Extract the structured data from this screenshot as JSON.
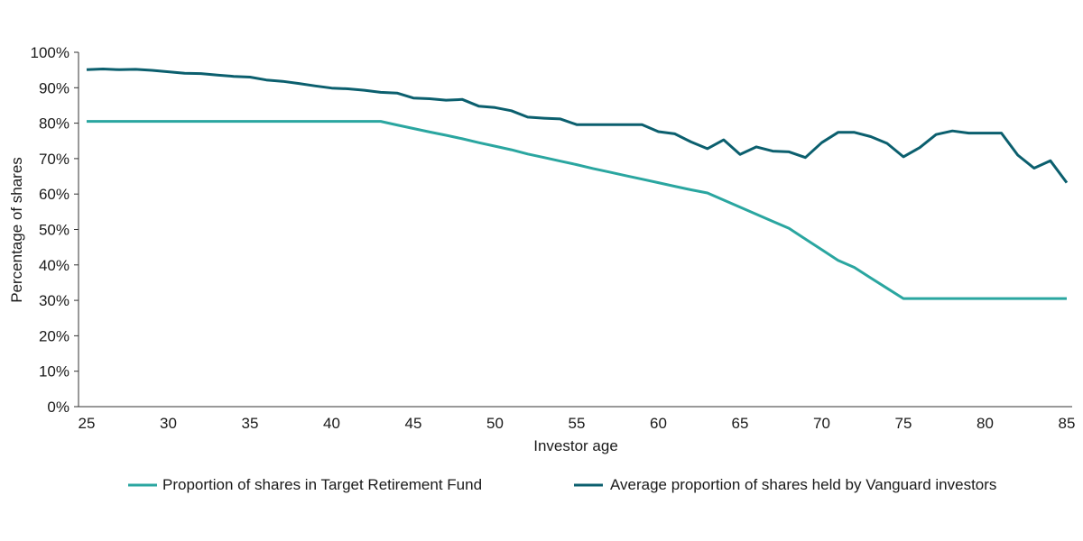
{
  "chart_data": {
    "type": "line",
    "title": "",
    "xlabel": "Investor age",
    "ylabel": "Percentage of shares",
    "xlim": [
      25,
      85
    ],
    "ylim": [
      0,
      100
    ],
    "x_ticks": [
      25,
      30,
      35,
      40,
      45,
      50,
      55,
      60,
      65,
      70,
      75,
      80,
      85
    ],
    "y_ticks": [
      0,
      10,
      20,
      30,
      40,
      50,
      60,
      70,
      80,
      90,
      100
    ],
    "y_tick_labels": [
      "0%",
      "10%",
      "20%",
      "30%",
      "40%",
      "50%",
      "60%",
      "70%",
      "80%",
      "90%",
      "100%"
    ],
    "x_tick_labels": [
      "25",
      "30",
      "35",
      "40",
      "45",
      "50",
      "55",
      "60",
      "65",
      "70",
      "75",
      "80",
      "85"
    ],
    "grid": false,
    "legend_position": "bottom",
    "x": [
      25,
      26,
      27,
      28,
      29,
      30,
      31,
      32,
      33,
      34,
      35,
      36,
      37,
      38,
      39,
      40,
      41,
      42,
      43,
      44,
      45,
      46,
      47,
      48,
      49,
      50,
      51,
      52,
      53,
      54,
      55,
      56,
      57,
      58,
      59,
      60,
      61,
      62,
      63,
      64,
      65,
      66,
      67,
      68,
      69,
      70,
      71,
      72,
      73,
      74,
      75,
      76,
      77,
      78,
      79,
      80,
      81,
      82,
      83,
      84,
      85
    ],
    "series": [
      {
        "name": "Proportion of shares in Target Retirement Fund",
        "color": "#2aa6a0",
        "values": [
          80.5,
          80.5,
          80.5,
          80.5,
          80.5,
          80.5,
          80.5,
          80.5,
          80.5,
          80.5,
          80.5,
          80.5,
          80.5,
          80.5,
          80.5,
          80.5,
          80.5,
          80.5,
          80.5,
          79.5,
          78.5,
          77.5,
          76.6,
          75.6,
          74.5,
          73.5,
          72.5,
          71.3,
          70.3,
          69.3,
          68.3,
          67.2,
          66.2,
          65.2,
          64.2,
          63.2,
          62.2,
          61.2,
          60.3,
          58.3,
          56.3,
          54.3,
          52.3,
          50.3,
          47.3,
          44.3,
          41.3,
          39.3,
          36.3,
          33.4,
          30.5,
          30.5,
          30.5,
          30.5,
          30.5,
          30.5,
          30.5,
          30.5,
          30.5,
          30.5,
          30.5
        ]
      },
      {
        "name": "Average proportion of shares held by Vanguard investors",
        "color": "#0b5f6e",
        "values": [
          95.1,
          95.3,
          95.1,
          95.2,
          94.9,
          94.5,
          94.1,
          94.0,
          93.6,
          93.2,
          93.0,
          92.2,
          91.8,
          91.2,
          90.5,
          89.9,
          89.7,
          89.3,
          88.7,
          88.5,
          87.1,
          86.9,
          86.5,
          86.7,
          84.8,
          84.4,
          83.5,
          81.7,
          81.4,
          81.2,
          79.6,
          79.6,
          79.6,
          79.6,
          79.6,
          77.6,
          77.0,
          74.7,
          72.8,
          75.3,
          71.2,
          73.3,
          72.1,
          71.9,
          70.3,
          74.5,
          77.4,
          77.4,
          76.2,
          74.3,
          70.5,
          73.1,
          76.8,
          77.8,
          77.2,
          77.2,
          77.2,
          71.0,
          67.3,
          69.4,
          63.2
        ]
      }
    ]
  }
}
